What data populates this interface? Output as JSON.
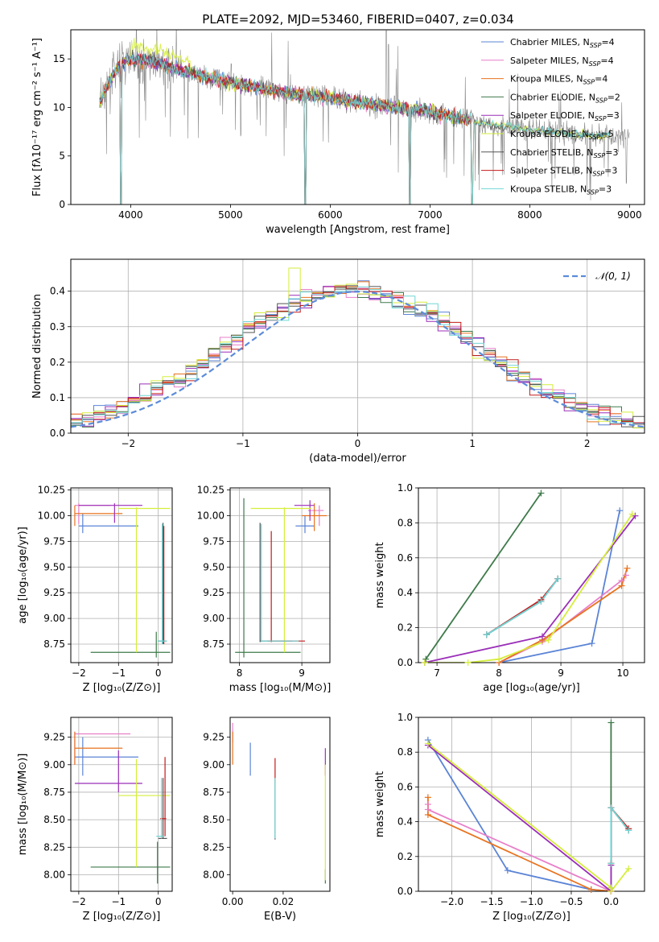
{
  "figure": {
    "title": "PLATE=2092, MJD=53460, FIBERID=0407, z=0.034"
  },
  "colors": {
    "chabrier_miles": "#5b84d6",
    "salpeter_miles": "#e87fc9",
    "kroupa_miles": "#e8731f",
    "chabrier_elodie": "#3e7a4a",
    "salpeter_elodie": "#9b2fb8",
    "kroupa_elodie": "#d6ee3c",
    "chabrier_stelib": "#555555",
    "salpeter_stelib": "#c41a1a",
    "kroupa_stelib": "#70d6d6",
    "data_gray": "#8a8a8a",
    "normal_curve": "#5b8bd9"
  },
  "chart_data": [
    {
      "id": "spectrum",
      "type": "line",
      "title": "PLATE=2092, MJD=53460, FIBERID=0407, z=0.034",
      "xlabel": "wavelength [Angstrom, rest frame]",
      "ylabel": "Flux [fλ10⁻¹⁷ erg cm⁻² s⁻¹ A⁻¹]",
      "xlim": [
        3400,
        9150
      ],
      "ylim": [
        0,
        18
      ],
      "xticks": [
        4000,
        5000,
        6000,
        7000,
        8000,
        9000
      ],
      "yticks": [
        0,
        5,
        10,
        15
      ],
      "grid": false,
      "legend_position": "top-right",
      "legend": [
        "Chabrier MILES, N_SSP=4",
        "Salpeter MILES, N_SSP=4",
        "Kroupa MILES, N_SSP=4",
        "Chabrier ELODIE, N_SSP=2",
        "Salpeter ELODIE, N_SSP=3",
        "Kroupa ELODIE, N_SSP=5",
        "Chabrier STELIB, N_SSP=3",
        "Salpeter STELIB, N_SSP=3",
        "Kroupa STELIB, N_SSP=3"
      ],
      "data_continuum": {
        "x": [
          3690,
          3800,
          3900,
          4000,
          4200,
          4500,
          5000,
          5500,
          6000,
          6500,
          7000,
          7500,
          8000,
          8500,
          9000
        ],
        "y": [
          10.5,
          13.0,
          14.5,
          15.0,
          14.8,
          13.8,
          12.6,
          11.6,
          11.0,
          10.2,
          9.6,
          8.4,
          7.7,
          7.2,
          7.0
        ]
      },
      "model_drops_x": [
        3900,
        5750,
        6800,
        7420
      ]
    },
    {
      "id": "residuals",
      "type": "line",
      "xlabel": "(data-model)/error",
      "ylabel": "Normed distribution",
      "xlim": [
        -2.5,
        2.5
      ],
      "ylim": [
        0,
        0.49
      ],
      "xticks": [
        -2,
        -1,
        0,
        1,
        2
      ],
      "yticks": [
        0.0,
        0.1,
        0.2,
        0.3,
        0.4
      ],
      "grid": true,
      "legend_position": "top-right",
      "legend": [
        "𝒩(0, 1)"
      ],
      "bin_width": 0.1
    },
    {
      "id": "age_vs_z",
      "type": "scatter",
      "xlabel": "Z [log₁₀(Z/Z⊙)]",
      "ylabel": "age  [log₁₀(age/yr)]",
      "xlim": [
        -2.2,
        0.35
      ],
      "ylim": [
        8.57,
        10.27
      ],
      "xticks": [
        -2,
        -1,
        0
      ],
      "yticks": [
        8.75,
        9.0,
        9.25,
        9.5,
        9.75,
        10.0,
        10.25
      ],
      "grid": true,
      "segments": [
        {
          "model": "chabrier_miles",
          "dir": "h",
          "c": 9.9,
          "from": -2.0,
          "to": -0.5
        },
        {
          "model": "chabrier_miles",
          "dir": "v",
          "c": -1.9,
          "from": 9.83,
          "to": 10.02
        },
        {
          "model": "salpeter_miles",
          "dir": "h",
          "c": 10.1,
          "from": -2.1,
          "to": -1.2
        },
        {
          "model": "salpeter_miles",
          "dir": "v",
          "c": -2.0,
          "from": 9.92,
          "to": 10.12
        },
        {
          "model": "kroupa_miles",
          "dir": "h",
          "c": 10.02,
          "from": -2.1,
          "to": -0.9
        },
        {
          "model": "kroupa_miles",
          "dir": "v",
          "c": -2.1,
          "from": 9.9,
          "to": 10.1
        },
        {
          "model": "chabrier_elodie",
          "dir": "h",
          "c": 8.67,
          "from": -1.7,
          "to": 0.3
        },
        {
          "model": "chabrier_elodie",
          "dir": "v",
          "c": -0.05,
          "from": 8.62,
          "to": 8.87
        },
        {
          "model": "salpeter_elodie",
          "dir": "h",
          "c": 10.1,
          "from": -2.0,
          "to": -0.4
        },
        {
          "model": "salpeter_elodie",
          "dir": "v",
          "c": -1.1,
          "from": 9.93,
          "to": 10.12
        },
        {
          "model": "kroupa_elodie",
          "dir": "h",
          "c": 10.07,
          "from": -1.0,
          "to": 0.3
        },
        {
          "model": "kroupa_elodie",
          "dir": "v",
          "c": -0.55,
          "from": 8.67,
          "to": 10.08
        },
        {
          "model": "chabrier_stelib",
          "dir": "v",
          "c": 0.12,
          "from": 8.75,
          "to": 9.93
        },
        {
          "model": "chabrier_stelib",
          "dir": "h",
          "c": 8.78,
          "from": 0.0,
          "to": 0.2
        },
        {
          "model": "salpeter_stelib",
          "dir": "v",
          "c": 0.14,
          "from": 8.75,
          "to": 9.9
        },
        {
          "model": "kroupa_stelib",
          "dir": "v",
          "c": 0.1,
          "from": 8.75,
          "to": 9.92
        },
        {
          "model": "kroupa_stelib",
          "dir": "h",
          "c": 8.78,
          "from": -0.02,
          "to": 0.22
        }
      ]
    },
    {
      "id": "age_vs_mass",
      "type": "scatter",
      "xlabel": "mass [log₁₀(M/M⊙)]",
      "xlim": [
        7.85,
        9.45
      ],
      "ylim": [
        8.57,
        10.27
      ],
      "xticks": [
        8,
        9
      ],
      "yticks": [
        8.75,
        9.0,
        9.25,
        9.5,
        9.75,
        10.0,
        10.25
      ],
      "grid": true,
      "segments": [
        {
          "model": "chabrier_miles",
          "dir": "h",
          "c": 9.9,
          "from": 8.9,
          "to": 9.2
        },
        {
          "model": "chabrier_miles",
          "dir": "v",
          "c": 9.05,
          "from": 9.83,
          "to": 10.0
        },
        {
          "model": "salpeter_miles",
          "dir": "h",
          "c": 10.05,
          "from": 9.1,
          "to": 9.35
        },
        {
          "model": "salpeter_miles",
          "dir": "v",
          "c": 9.28,
          "from": 9.9,
          "to": 10.1
        },
        {
          "model": "kroupa_miles",
          "dir": "h",
          "c": 10.0,
          "from": 9.0,
          "to": 9.4
        },
        {
          "model": "kroupa_miles",
          "dir": "v",
          "c": 9.2,
          "from": 9.85,
          "to": 10.12
        },
        {
          "model": "chabrier_elodie",
          "dir": "h",
          "c": 8.67,
          "from": 7.93,
          "to": 8.98
        },
        {
          "model": "chabrier_elodie",
          "dir": "v",
          "c": 8.07,
          "from": 8.62,
          "to": 10.17
        },
        {
          "model": "salpeter_elodie",
          "dir": "h",
          "c": 10.1,
          "from": 8.88,
          "to": 9.2
        },
        {
          "model": "salpeter_elodie",
          "dir": "v",
          "c": 9.13,
          "from": 9.95,
          "to": 10.15
        },
        {
          "model": "kroupa_elodie",
          "dir": "h",
          "c": 10.07,
          "from": 8.18,
          "to": 9.15
        },
        {
          "model": "kroupa_elodie",
          "dir": "v",
          "c": 8.72,
          "from": 8.67,
          "to": 10.08
        },
        {
          "model": "chabrier_stelib",
          "dir": "v",
          "c": 8.33,
          "from": 8.77,
          "to": 9.93
        },
        {
          "model": "chabrier_stelib",
          "dir": "h",
          "c": 8.78,
          "from": 8.33,
          "to": 8.85
        },
        {
          "model": "salpeter_stelib",
          "dir": "v",
          "c": 8.51,
          "from": 8.77,
          "to": 9.85
        },
        {
          "model": "salpeter_stelib",
          "dir": "h",
          "c": 8.78,
          "from": 8.45,
          "to": 9.05
        },
        {
          "model": "kroupa_stelib",
          "dir": "v",
          "c": 8.35,
          "from": 8.77,
          "to": 9.92
        },
        {
          "model": "kroupa_stelib",
          "dir": "h",
          "c": 8.78,
          "from": 8.35,
          "to": 8.95
        }
      ]
    },
    {
      "id": "weight_vs_age",
      "type": "line",
      "xlabel": "age  [log₁₀(age/yr)]",
      "ylabel": "mass weight",
      "xlim": [
        6.7,
        10.35
      ],
      "ylim": [
        0,
        1.0
      ],
      "xticks": [
        7,
        8,
        9,
        10
      ],
      "yticks": [
        0.0,
        0.2,
        0.4,
        0.6,
        0.8,
        1.0
      ],
      "grid": true,
      "series": [
        {
          "model": "chabrier_miles",
          "x": [
            8.0,
            9.5,
            9.95
          ],
          "y": [
            0.0,
            0.11,
            0.87
          ]
        },
        {
          "model": "salpeter_miles",
          "x": [
            8.0,
            8.7,
            9.98,
            10.05
          ],
          "y": [
            0.0,
            0.12,
            0.47,
            0.5
          ]
        },
        {
          "model": "kroupa_miles",
          "x": [
            8.0,
            8.7,
            9.98,
            10.07
          ],
          "y": [
            0.0,
            0.13,
            0.44,
            0.54
          ]
        },
        {
          "model": "chabrier_elodie",
          "x": [
            6.82,
            8.68
          ],
          "y": [
            0.02,
            0.97
          ]
        },
        {
          "model": "salpeter_elodie",
          "x": [
            6.8,
            8.7,
            10.2
          ],
          "y": [
            0.0,
            0.15,
            0.84
          ]
        },
        {
          "model": "kroupa_elodie",
          "x": [
            6.8,
            7.5,
            8.0,
            8.8,
            10.15
          ],
          "y": [
            0.0,
            0.0,
            0.02,
            0.13,
            0.85
          ]
        },
        {
          "model": "chabrier_stelib",
          "x": [
            7.8,
            8.68,
            8.95
          ],
          "y": [
            0.16,
            0.35,
            0.48
          ]
        },
        {
          "model": "salpeter_stelib",
          "x": [
            7.8,
            8.68,
            8.95
          ],
          "y": [
            0.16,
            0.36,
            0.48
          ]
        },
        {
          "model": "kroupa_stelib",
          "x": [
            7.8,
            8.68,
            8.95
          ],
          "y": [
            0.16,
            0.35,
            0.48
          ]
        }
      ]
    },
    {
      "id": "mass_vs_z",
      "type": "scatter",
      "xlabel": "Z [log₁₀(Z/Z⊙)]",
      "ylabel": "mass [log₁₀(M/M⊙)]",
      "xlim": [
        -2.2,
        0.35
      ],
      "ylim": [
        7.85,
        9.43
      ],
      "xticks": [
        -2,
        -1,
        0
      ],
      "yticks": [
        8.0,
        8.25,
        8.5,
        8.75,
        9.0,
        9.25
      ],
      "grid": true,
      "segments": [
        {
          "model": "chabrier_miles",
          "dir": "h",
          "c": 9.07,
          "from": -2.1,
          "to": -0.5
        },
        {
          "model": "chabrier_miles",
          "dir": "v",
          "c": -1.9,
          "from": 8.9,
          "to": 9.25
        },
        {
          "model": "salpeter_miles",
          "dir": "h",
          "c": 9.28,
          "from": -2.1,
          "to": -0.7
        },
        {
          "model": "salpeter_miles",
          "dir": "v",
          "c": -2.1,
          "from": 9.0,
          "to": 9.3
        },
        {
          "model": "kroupa_miles",
          "dir": "h",
          "c": 9.15,
          "from": -2.1,
          "to": -0.9
        },
        {
          "model": "kroupa_miles",
          "dir": "v",
          "c": -2.1,
          "from": 9.0,
          "to": 9.3
        },
        {
          "model": "chabrier_elodie",
          "dir": "h",
          "c": 8.07,
          "from": -1.7,
          "to": 0.3
        },
        {
          "model": "chabrier_elodie",
          "dir": "v",
          "c": -0.02,
          "from": 7.92,
          "to": 8.3
        },
        {
          "model": "salpeter_elodie",
          "dir": "h",
          "c": 8.83,
          "from": -2.1,
          "to": -0.4
        },
        {
          "model": "salpeter_elodie",
          "dir": "v",
          "c": -1.0,
          "from": 8.75,
          "to": 9.13
        },
        {
          "model": "kroupa_elodie",
          "dir": "h",
          "c": 8.72,
          "from": -1.0,
          "to": 0.3
        },
        {
          "model": "kroupa_elodie",
          "dir": "v",
          "c": -0.55,
          "from": 8.07,
          "to": 9.05
        },
        {
          "model": "chabrier_stelib",
          "dir": "v",
          "c": 0.12,
          "from": 8.33,
          "to": 8.88
        },
        {
          "model": "chabrier_stelib",
          "dir": "h",
          "c": 8.33,
          "from": 0.0,
          "to": 0.22
        },
        {
          "model": "salpeter_stelib",
          "dir": "v",
          "c": 0.17,
          "from": 8.35,
          "to": 9.07
        },
        {
          "model": "salpeter_stelib",
          "dir": "h",
          "c": 8.51,
          "from": 0.05,
          "to": 0.2
        },
        {
          "model": "kroupa_stelib",
          "dir": "v",
          "c": 0.08,
          "from": 8.33,
          "to": 8.88
        },
        {
          "model": "kroupa_stelib",
          "dir": "h",
          "c": 8.35,
          "from": -0.05,
          "to": 0.15
        }
      ]
    },
    {
      "id": "mass_vs_ebv",
      "type": "scatter",
      "xlabel": "E(B-V)",
      "xlim": [
        -0.001,
        0.0385
      ],
      "ylim": [
        7.85,
        9.43
      ],
      "xticks": [
        0.0,
        0.02
      ],
      "yticks": [
        8.0,
        8.25,
        8.5,
        8.75,
        9.0,
        9.25
      ],
      "grid": false,
      "segments": [
        {
          "model": "chabrier_miles",
          "dir": "v",
          "c": 0.007,
          "from": 8.9,
          "to": 9.2
        },
        {
          "model": "salpeter_miles",
          "dir": "v",
          "c": 0.0,
          "from": 9.2,
          "to": 9.38
        },
        {
          "model": "kroupa_miles",
          "dir": "v",
          "c": 0.0,
          "from": 9.0,
          "to": 9.3
        },
        {
          "model": "chabrier_elodie",
          "dir": "v",
          "c": 0.0367,
          "from": 7.92,
          "to": 8.05
        },
        {
          "model": "salpeter_elodie",
          "dir": "v",
          "c": 0.0367,
          "from": 8.9,
          "to": 9.15
        },
        {
          "model": "kroupa_elodie",
          "dir": "v",
          "c": 0.0367,
          "from": 7.95,
          "to": 9.0
        },
        {
          "model": "chabrier_stelib",
          "dir": "v",
          "c": 0.0168,
          "from": 8.32,
          "to": 8.85
        },
        {
          "model": "salpeter_stelib",
          "dir": "v",
          "c": 0.0168,
          "from": 8.85,
          "to": 9.06
        },
        {
          "model": "kroupa_stelib",
          "dir": "v",
          "c": 0.0168,
          "from": 8.33,
          "to": 8.88
        }
      ]
    },
    {
      "id": "weight_vs_z",
      "type": "line",
      "xlabel": "Z [log₁₀(Z/Z⊙)]",
      "ylabel": "mass weight",
      "xlim": [
        -2.42,
        0.42
      ],
      "ylim": [
        0,
        1.0
      ],
      "xticks": [
        -2.0,
        -1.5,
        -1.0,
        -0.5,
        0.0
      ],
      "yticks": [
        0.0,
        0.2,
        0.4,
        0.6,
        0.8,
        1.0
      ],
      "grid": true,
      "series": [
        {
          "model": "chabrier_miles",
          "x": [
            -2.3,
            -1.3,
            -0.25,
            0.0
          ],
          "y": [
            0.87,
            0.12,
            0.01,
            0.0
          ]
        },
        {
          "model": "salpeter_miles",
          "x": [
            -2.3,
            -2.3,
            0.0,
            0.0
          ],
          "y": [
            0.5,
            0.47,
            0.0,
            0.0
          ]
        },
        {
          "model": "kroupa_miles",
          "x": [
            -2.3,
            -2.3,
            -0.25,
            0.0
          ],
          "y": [
            0.54,
            0.44,
            0.01,
            0.0
          ]
        },
        {
          "model": "chabrier_elodie",
          "x": [
            0.0,
            0.0
          ],
          "y": [
            0.02,
            0.97
          ]
        },
        {
          "model": "salpeter_elodie",
          "x": [
            -2.3,
            0.0,
            0.0
          ],
          "y": [
            0.84,
            0.0,
            0.15
          ]
        },
        {
          "model": "kroupa_elodie",
          "x": [
            -2.3,
            0.0,
            0.0,
            0.22
          ],
          "y": [
            0.85,
            0.02,
            0.0,
            0.13
          ]
        },
        {
          "model": "chabrier_stelib",
          "x": [
            0.0,
            0.0,
            0.22
          ],
          "y": [
            0.16,
            0.48,
            0.35
          ]
        },
        {
          "model": "salpeter_stelib",
          "x": [
            0.0,
            0.0,
            0.22
          ],
          "y": [
            0.16,
            0.48,
            0.36
          ]
        },
        {
          "model": "kroupa_stelib",
          "x": [
            0.0,
            0.0,
            0.22
          ],
          "y": [
            0.16,
            0.48,
            0.35
          ]
        }
      ]
    }
  ]
}
